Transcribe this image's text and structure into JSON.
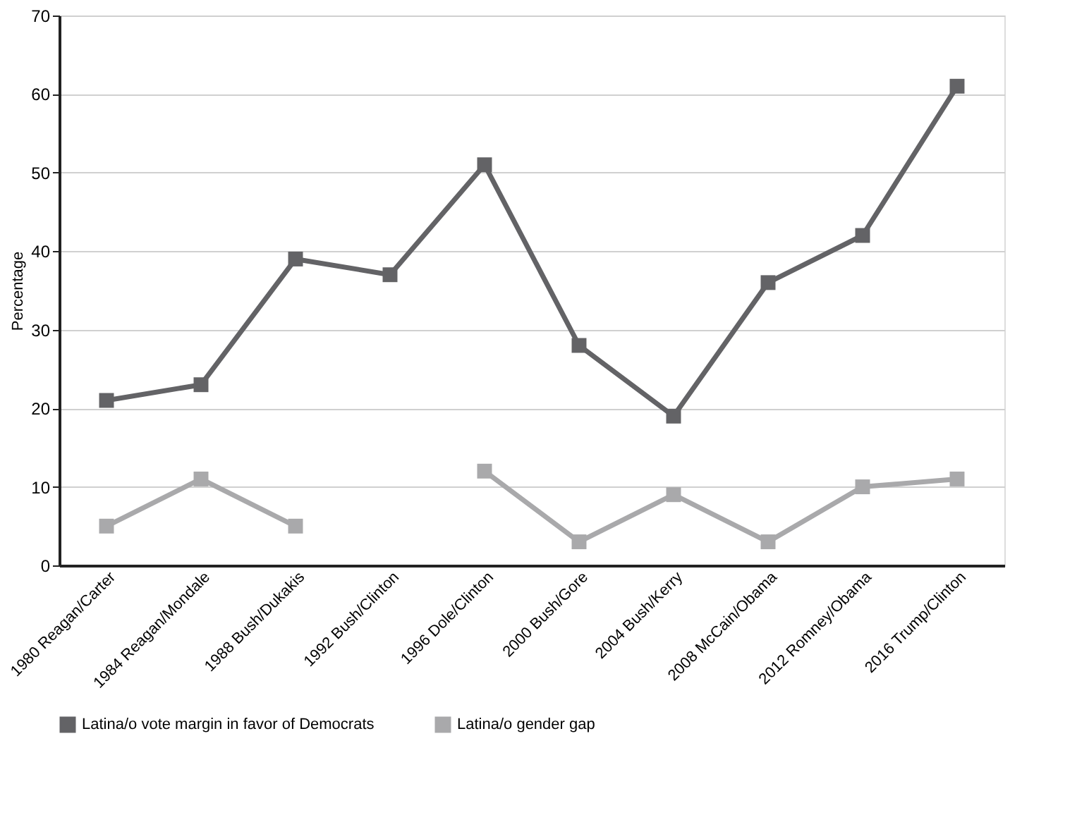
{
  "chart_data": {
    "type": "line",
    "ylabel": "Percentage",
    "categories": [
      "1980 Reagan/Carter",
      "1984 Reagan/Mondale",
      "1988 Bush/Dukakis",
      "1992 Bush/Clinton",
      "1996 Dole/Clinton",
      "2000 Bush/Gore",
      "2004 Bush/Kerry",
      "2008 McCain/Obama",
      "2012 Romney/Obama",
      "2016 Trump/Clinton"
    ],
    "series": [
      {
        "name": "Latina/o vote margin in favor of Democrats",
        "color": "#636366",
        "values": [
          21,
          23,
          39,
          37,
          51,
          28,
          19,
          36,
          42,
          61
        ]
      },
      {
        "name": "Latina/o gender gap",
        "color": "#a9a9ab",
        "values": [
          5,
          11,
          5,
          null,
          12,
          3,
          9,
          3,
          10,
          11
        ]
      }
    ],
    "ylim": [
      0,
      70
    ],
    "yticks": [
      0,
      10,
      20,
      30,
      40,
      50,
      60,
      70
    ],
    "grid": "y",
    "legend": "bottom",
    "marker": "square",
    "line_style": "solid"
  }
}
